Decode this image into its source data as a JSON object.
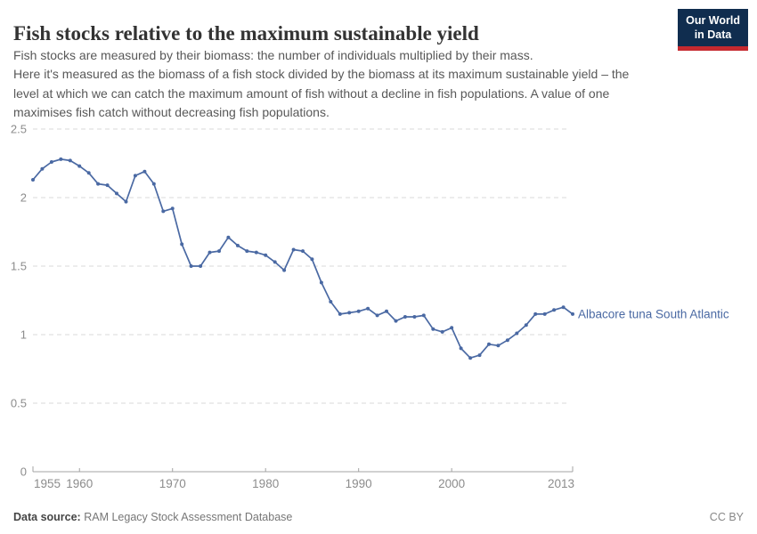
{
  "header": {
    "title": "Fish stocks relative to the maximum sustainable yield",
    "logo": {
      "line1": "Our World",
      "line2": "in Data"
    }
  },
  "subtitle_lines": [
    "Fish stocks are measured by their biomass: the number of individuals multiplied by their mass.",
    "Here it's measured as the biomass of a fish stock divided by the biomass at its maximum sustainable yield – the",
    "level at which we can catch the maximum amount of fish without a decline in fish populations. A value of one",
    "maximises fish catch without decreasing fish populations."
  ],
  "chart_data": {
    "type": "line",
    "title": "Fish stocks relative to the maximum sustainable yield",
    "xlabel": "",
    "ylabel": "",
    "xlim": [
      1955,
      2013
    ],
    "ylim": [
      0,
      2.5
    ],
    "x_ticks": [
      1955,
      1960,
      1970,
      1980,
      1990,
      2000,
      2013
    ],
    "y_ticks": [
      0,
      0.5,
      1,
      1.5,
      2,
      2.5
    ],
    "grid": "horizontal-dashed",
    "legend_position": "end-of-line",
    "line_color": "#4A69A3",
    "series": [
      {
        "name": "Albacore tuna South Atlantic",
        "color": "#4A69A3",
        "years": [
          1955,
          1956,
          1957,
          1958,
          1959,
          1960,
          1961,
          1962,
          1963,
          1964,
          1965,
          1966,
          1967,
          1968,
          1969,
          1970,
          1971,
          1972,
          1973,
          1974,
          1975,
          1976,
          1977,
          1978,
          1979,
          1980,
          1981,
          1982,
          1983,
          1984,
          1985,
          1986,
          1987,
          1988,
          1989,
          1990,
          1991,
          1992,
          1993,
          1994,
          1995,
          1996,
          1997,
          1998,
          1999,
          2000,
          2001,
          2002,
          2003,
          2004,
          2005,
          2006,
          2007,
          2008,
          2009,
          2010,
          2011,
          2012,
          2013
        ],
        "values": [
          2.13,
          2.21,
          2.26,
          2.28,
          2.27,
          2.23,
          2.18,
          2.1,
          2.09,
          2.03,
          1.97,
          2.16,
          2.19,
          2.1,
          1.9,
          1.92,
          1.66,
          1.5,
          1.5,
          1.6,
          1.61,
          1.71,
          1.65,
          1.61,
          1.6,
          1.58,
          1.53,
          1.47,
          1.62,
          1.61,
          1.55,
          1.38,
          1.24,
          1.15,
          1.16,
          1.17,
          1.19,
          1.14,
          1.17,
          1.1,
          1.13,
          1.13,
          1.14,
          1.04,
          1.02,
          1.05,
          0.9,
          0.83,
          0.85,
          0.93,
          0.92,
          0.96,
          1.01,
          1.07,
          1.15,
          1.15,
          1.18,
          1.2,
          1.15
        ]
      }
    ],
    "colors": {
      "grid": "#d9d9d9",
      "axis": "#a3a3a3",
      "tick_text": "#8c8c8c"
    }
  },
  "footer": {
    "datasource_label": "Data source:",
    "datasource_value": " RAM Legacy Stock Assessment Database",
    "license": "CC BY"
  }
}
